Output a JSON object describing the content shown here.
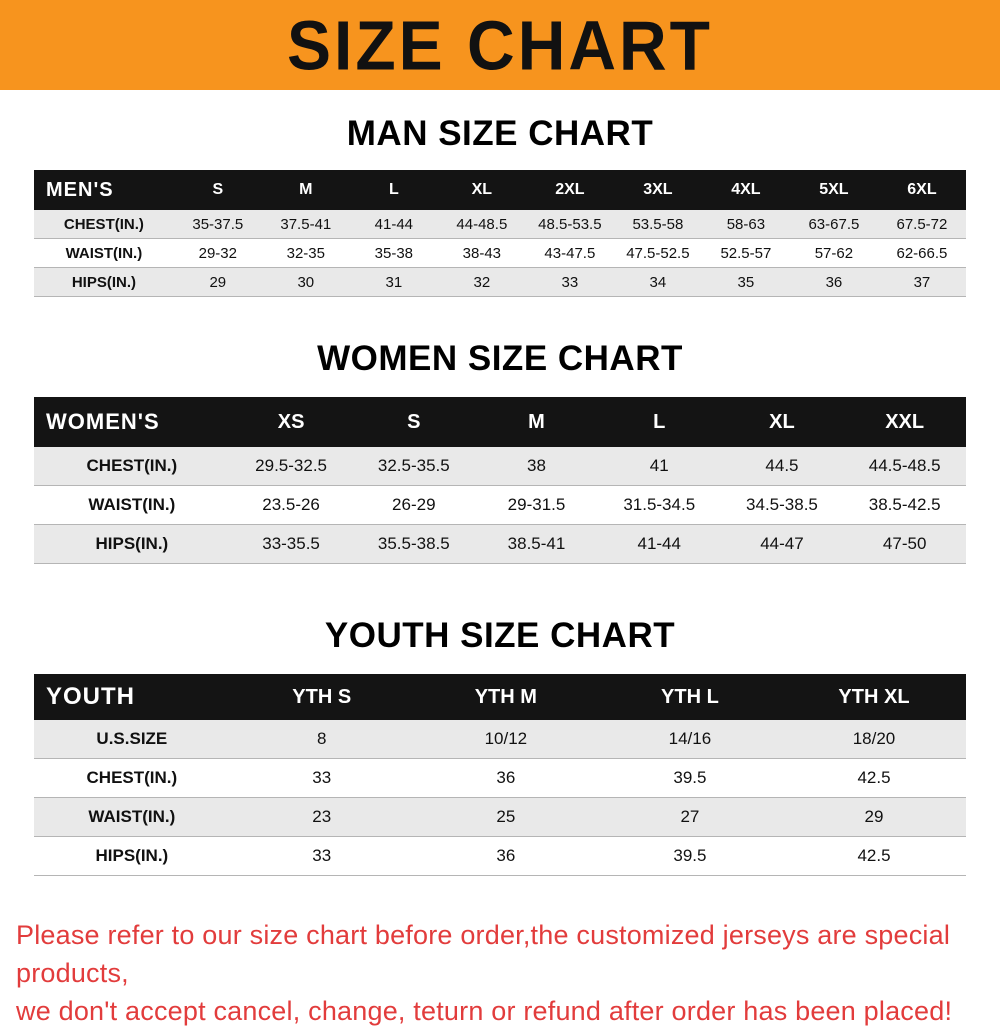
{
  "banner": {
    "title": "SIZE CHART"
  },
  "man": {
    "heading": "MAN SIZE CHART",
    "corner": "MEN'S",
    "columns": [
      "S",
      "M",
      "L",
      "XL",
      "2XL",
      "3XL",
      "4XL",
      "5XL",
      "6XL"
    ],
    "rows": [
      [
        "CHEST(IN.)",
        "35-37.5",
        "37.5-41",
        "41-44",
        "44-48.5",
        "48.5-53.5",
        "53.5-58",
        "58-63",
        "63-67.5",
        "67.5-72"
      ],
      [
        "WAIST(IN.)",
        "29-32",
        "32-35",
        "35-38",
        "38-43",
        "43-47.5",
        "47.5-52.5",
        "52.5-57",
        "57-62",
        "62-66.5"
      ],
      [
        "HIPS(IN.)",
        "29",
        "30",
        "31",
        "32",
        "33",
        "34",
        "35",
        "36",
        "37"
      ]
    ]
  },
  "women": {
    "heading": "WOMEN SIZE CHART",
    "corner": "WOMEN'S",
    "columns": [
      "XS",
      "S",
      "M",
      "L",
      "XL",
      "XXL"
    ],
    "rows": [
      [
        "CHEST(IN.)",
        "29.5-32.5",
        "32.5-35.5",
        "38",
        "41",
        "44.5",
        "44.5-48.5"
      ],
      [
        "WAIST(IN.)",
        "23.5-26",
        "26-29",
        "29-31.5",
        "31.5-34.5",
        "34.5-38.5",
        "38.5-42.5"
      ],
      [
        "HIPS(IN.)",
        "33-35.5",
        "35.5-38.5",
        "38.5-41",
        "41-44",
        "44-47",
        "47-50"
      ]
    ]
  },
  "youth": {
    "heading": "YOUTH SIZE CHART",
    "corner": "YOUTH",
    "columns": [
      "YTH S",
      "YTH M",
      "YTH L",
      "YTH XL"
    ],
    "rows": [
      [
        "U.S.SIZE",
        "8",
        "10/12",
        "14/16",
        "18/20"
      ],
      [
        "CHEST(IN.)",
        "33",
        "36",
        "39.5",
        "42.5"
      ],
      [
        "WAIST(IN.)",
        "23",
        "25",
        "27",
        "29"
      ],
      [
        "HIPS(IN.)",
        "33",
        "36",
        "39.5",
        "42.5"
      ]
    ]
  },
  "footer": {
    "line1": "Please refer to our size chart before order,the customized jerseys are special products,",
    "line2": "we don't accept cancel, change, teturn or refund after order has been placed!"
  },
  "colors": {
    "banner_bg": "#f7941e",
    "header_bg": "#141414",
    "row_alt_bg": "#e9e9e9",
    "footer_text": "#e23c3c"
  }
}
